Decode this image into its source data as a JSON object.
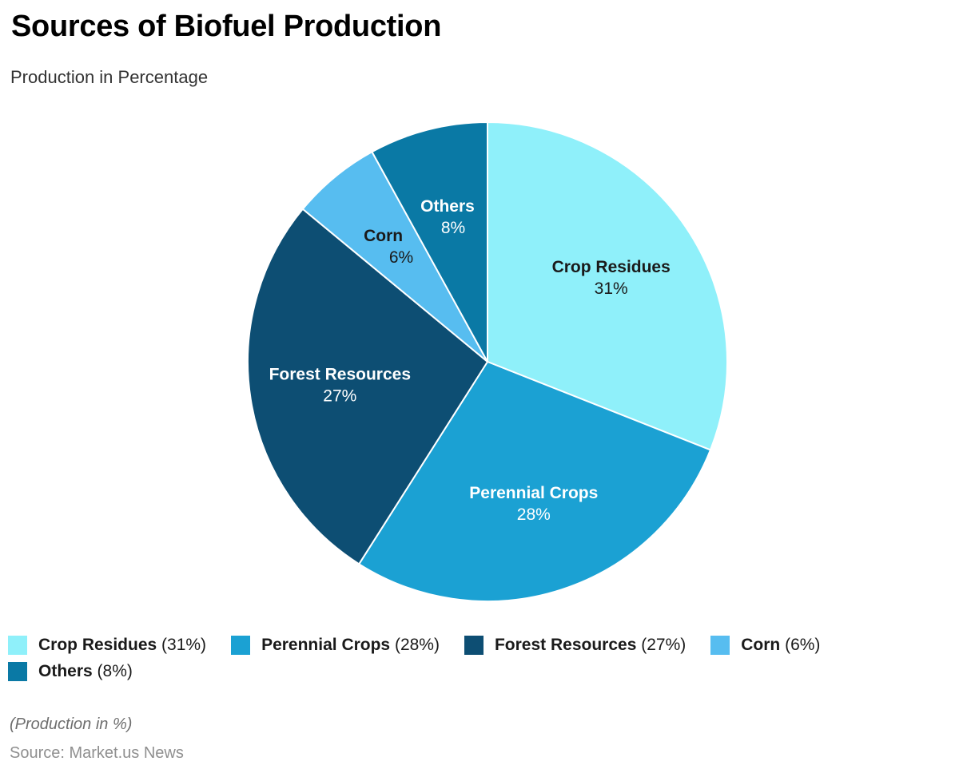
{
  "header": {
    "title": "Sources of Biofuel Production",
    "subtitle": "Production in Percentage"
  },
  "chart_data": {
    "type": "pie",
    "title": "Sources of Biofuel Production",
    "subtitle": "Production in Percentage",
    "unit": "%",
    "start_angle_deg": 0,
    "direction": "clockwise",
    "labels": "inside",
    "legend_position": "bottom-left",
    "categories": [
      "Crop Residues",
      "Perennial Crops",
      "Forest Resources",
      "Corn",
      "Others"
    ],
    "values": [
      31,
      28,
      27,
      6,
      8
    ],
    "slices": [
      {
        "label": "Crop Residues",
        "value": 31,
        "value_text": "31%",
        "legend_suffix": "(31%)",
        "color": "#8FF0FA",
        "text_color": "#1a1a1a"
      },
      {
        "label": "Perennial Crops",
        "value": 28,
        "value_text": "28%",
        "legend_suffix": "(28%)",
        "color": "#1BA1D3",
        "text_color": "#ffffff"
      },
      {
        "label": "Forest Resources",
        "value": 27,
        "value_text": "27%",
        "legend_suffix": "(27%)",
        "color": "#0D4E73",
        "text_color": "#ffffff"
      },
      {
        "label": "Corn",
        "value": 6,
        "value_text": "6%",
        "legend_suffix": "(6%)",
        "color": "#57BDF0",
        "text_color": "#1a1a1a"
      },
      {
        "label": "Others",
        "value": 8,
        "value_text": "8%",
        "legend_suffix": "(8%)",
        "color": "#0A79A5",
        "text_color": "#ffffff"
      }
    ],
    "stroke_color": "#ffffff"
  },
  "footer": {
    "note": "(Production in %)",
    "source": "Source: Market.us News"
  }
}
